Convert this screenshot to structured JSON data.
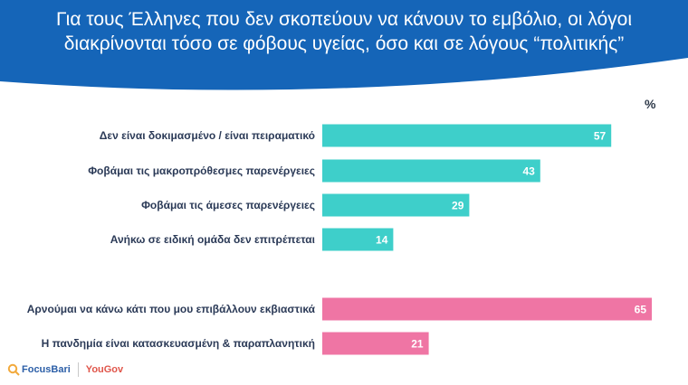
{
  "header": {
    "title_line1": "Για τους Έλληνες που δεν σκοπεύουν να κάνουν το εμβόλιο, οι λόγοι",
    "title_line2": "διακρίνονται τόσο σε φόβους υγείας, όσο και σε λόγους “πολιτικής”",
    "bg_color": "#1565b8"
  },
  "unit_label": "%",
  "colors": {
    "health": "#3ecfca",
    "politics": "#ef75a4",
    "label_text": "#2b3a57"
  },
  "chart_data": {
    "type": "bar",
    "orientation": "horizontal",
    "categories": [
      "Δεν είναι δοκιμασμένο / είναι πειραματικό",
      "Φοβάμαι τις μακροπρόθεσμες παρενέργειες",
      "Φοβάμαι τις άμεσες παρενέργειες",
      "Ανήκω σε ειδική ομάδα δεν επιτρέπεται",
      "Αρνούμαι να κάνω κάτι που μου επιβάλλουν εκβιαστικά",
      "Η πανδημία είναι κατασκευασμένη & παραπλανητική"
    ],
    "values": [
      57,
      43,
      29,
      14,
      65,
      21
    ],
    "groups": [
      "health",
      "health",
      "health",
      "health",
      "politics",
      "politics"
    ],
    "xlim": [
      0,
      70
    ]
  },
  "footer": {
    "brand1": "FocusBari",
    "brand2": "YouGov"
  }
}
